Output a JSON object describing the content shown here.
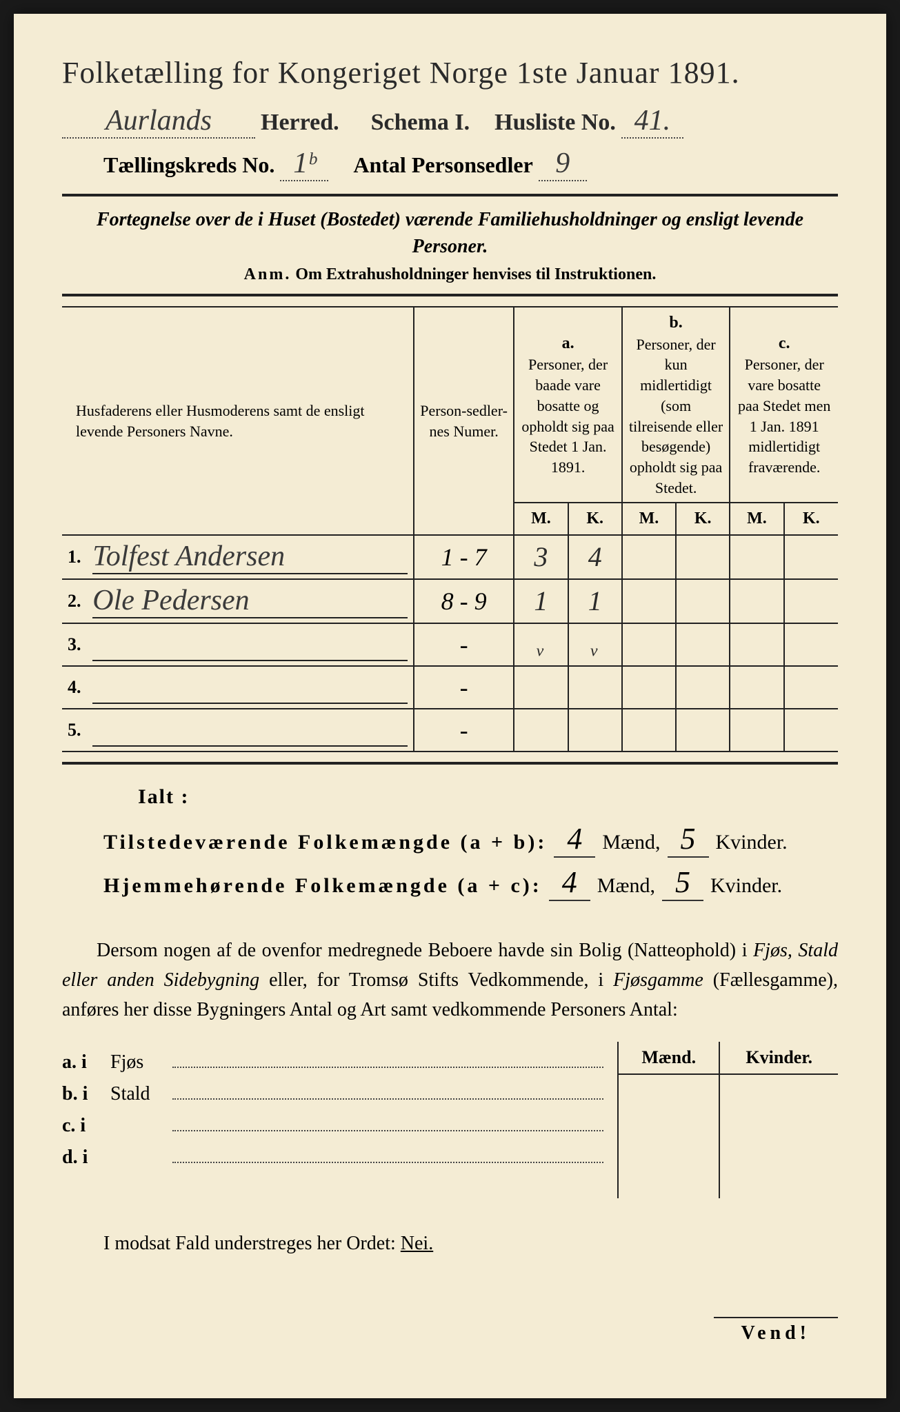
{
  "title": "Folketælling for Kongeriget Norge 1ste Januar 1891.",
  "header": {
    "herred_hw": "Aurlands",
    "herred_label": "Herred.",
    "schema_label": "Schema I.",
    "husliste_label": "Husliste No.",
    "husliste_hw": "41.",
    "kreds_label": "Tællingskreds No.",
    "kreds_hw": "1ᵇ",
    "antal_label": "Antal Personsedler",
    "antal_hw": "9"
  },
  "subtitle": "Fortegnelse over de i Huset (Bostedet) værende Familiehusholdninger og ensligt levende Personer.",
  "anm_label": "Anm.",
  "anm_text": "Om Extrahusholdninger henvises til Instruktionen.",
  "table": {
    "head_name": "Husfaderens eller Husmoderens samt de ensligt levende Personers Navne.",
    "head_numer": "Person-sedler-nes Numer.",
    "col_a_label": "a.",
    "col_a_text": "Personer, der baade vare bosatte og opholdt sig paa Stedet 1 Jan. 1891.",
    "col_b_label": "b.",
    "col_b_text": "Personer, der kun midlertidigt (som tilreisende eller besøgende) opholdt sig paa Stedet.",
    "col_c_label": "c.",
    "col_c_text": "Personer, der vare bosatte paa Stedet men 1 Jan. 1891 midlertidigt fraværende.",
    "m": "M.",
    "k": "K.",
    "rows": [
      {
        "num": "1.",
        "name": "Tolfest Andersen",
        "numer": "1 - 7",
        "a_m": "3",
        "a_k": "4",
        "b_m": "",
        "b_k": "",
        "c_m": "",
        "c_k": ""
      },
      {
        "num": "2.",
        "name": "Ole Pedersen",
        "numer": "8 - 9",
        "a_m": "1",
        "a_k": "1",
        "b_m": "",
        "b_k": "",
        "c_m": "",
        "c_k": ""
      },
      {
        "num": "3.",
        "name": "",
        "numer": "-",
        "a_m": "ᵥ",
        "a_k": "ᵥ",
        "b_m": "",
        "b_k": "",
        "c_m": "",
        "c_k": ""
      },
      {
        "num": "4.",
        "name": "",
        "numer": "-",
        "a_m": "",
        "a_k": "",
        "b_m": "",
        "b_k": "",
        "c_m": "",
        "c_k": ""
      },
      {
        "num": "5.",
        "name": "",
        "numer": "-",
        "a_m": "",
        "a_k": "",
        "b_m": "",
        "b_k": "",
        "c_m": "",
        "c_k": ""
      }
    ]
  },
  "ialt": "Ialt :",
  "totals": {
    "tilst_label": "Tilstedeværende Folkemængde (a + b):",
    "hjem_label": "Hjemmehørende Folkemængde (a + c):",
    "maend": "Mænd,",
    "kvinder": "Kvinder.",
    "tilst_m": "4",
    "tilst_k": "5",
    "hjem_m": "4",
    "hjem_k": "5"
  },
  "para": {
    "p1a": "Dersom nogen af de ovenfor medregnede Beboere havde sin Bolig (Natteophold) i ",
    "p1b": "Fjøs, Stald eller anden Sidebygning",
    "p1c": " eller, for Tromsø Stifts Vedkommende, i ",
    "p1d": "Fjøsgamme",
    "p1e": " (Fællesgamme), anføres her disse Bygningers Antal og Art samt vedkommende Personers Antal:"
  },
  "bolig": {
    "maend": "Mænd.",
    "kvinder": "Kvinder.",
    "rows": [
      {
        "lead": "a.  i",
        "label": "Fjøs"
      },
      {
        "lead": "b.  i",
        "label": "Stald"
      },
      {
        "lead": "c.  i",
        "label": ""
      },
      {
        "lead": "d.  i",
        "label": ""
      }
    ]
  },
  "modsat_pre": "I modsat Fald understreges her Ordet: ",
  "modsat_nei": "Nei.",
  "vend": "Vend!",
  "colors": {
    "paper": "#f4ecd4",
    "ink": "#2a2a2a",
    "frame": "#1a1a1a"
  }
}
